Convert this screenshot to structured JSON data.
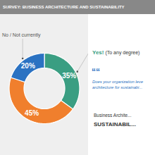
{
  "chart_data": {
    "type": "donut",
    "title": "SURVEY: BUSINESS ARCHITECTURE AND SUSTAINABILITY",
    "values": [
      35,
      45,
      20
    ],
    "value_labels": [
      "35%",
      "45%",
      "20%"
    ],
    "colors": [
      "#3a9e82",
      "#f07f2d",
      "#2b72c2"
    ],
    "data_labels": true,
    "annotations": [
      "Yes!",
      "(To any degree)",
      "““",
      "Does your organization leve\narchitecture for sustainabi...",
      "No / Not currently",
      "Business Archite...",
      "SUSTAINABIL..."
    ]
  }
}
